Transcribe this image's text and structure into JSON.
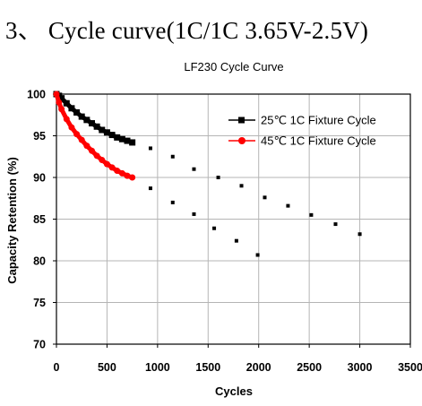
{
  "heading": "3、 Cycle curve(1C/1C 3.65V-2.5V)",
  "chart_data": {
    "type": "line",
    "title": "LF230 Cycle Curve",
    "xlabel": "Cycles",
    "ylabel": "Capacity Retention (%)",
    "xlim": [
      0,
      3500
    ],
    "ylim": [
      70,
      100
    ],
    "xticks": [
      "0",
      "500",
      "1000",
      "1500",
      "2000",
      "2500",
      "3000",
      "3500"
    ],
    "yticks": [
      "70",
      "75",
      "80",
      "85",
      "90",
      "95",
      "100"
    ],
    "grid": true,
    "legend_position": "right",
    "series": [
      {
        "name": "25℃ 1C  Fixture Cycle",
        "color": "#000000",
        "marker": "square",
        "x": [
          0,
          25,
          50,
          100,
          150,
          200,
          250,
          300,
          350,
          400,
          450,
          500,
          550,
          600,
          650,
          700,
          750
        ],
        "y": [
          100.0,
          99.8,
          99.5,
          98.9,
          98.3,
          97.8,
          97.3,
          96.9,
          96.5,
          96.1,
          95.7,
          95.4,
          95.1,
          94.8,
          94.6,
          94.4,
          94.2
        ]
      },
      {
        "name": "45℃ 1C  Fixture Cycle",
        "color": "#ff0000",
        "marker": "circle",
        "x": [
          0,
          25,
          50,
          100,
          150,
          200,
          250,
          300,
          350,
          400,
          450,
          500,
          550,
          600,
          650,
          700,
          750
        ],
        "y": [
          100.0,
          99.0,
          98.2,
          97.0,
          96.0,
          95.2,
          94.5,
          93.8,
          93.2,
          92.6,
          92.1,
          91.6,
          91.2,
          90.8,
          90.5,
          90.2,
          90.0
        ]
      }
    ],
    "projection_points": {
      "color": "#000000",
      "upper": {
        "x": [
          930,
          1150,
          1360,
          1600,
          1830,
          2060,
          2290,
          2520,
          2760,
          3000
        ],
        "y": [
          93.5,
          92.5,
          91.0,
          90.0,
          89.0,
          87.6,
          86.6,
          85.5,
          84.4,
          83.2
        ]
      },
      "lower": {
        "x": [
          930,
          1150,
          1360,
          1560,
          1780,
          1990
        ],
        "y": [
          88.7,
          87.0,
          85.6,
          83.9,
          82.4,
          80.7
        ]
      }
    }
  }
}
